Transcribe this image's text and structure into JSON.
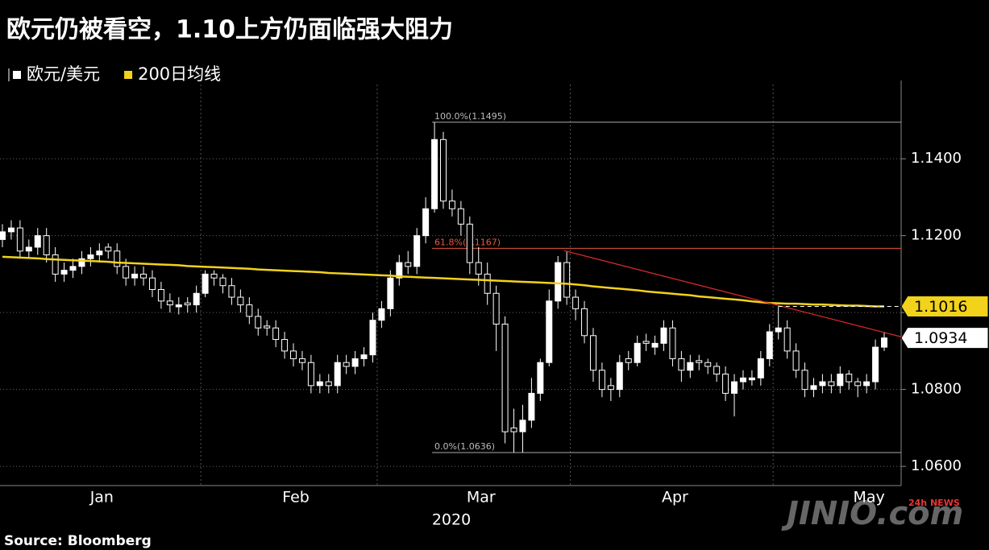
{
  "chart_data": {
    "type": "candlestick",
    "title": "欧元仍被看空，1.10上方仍面临强大阻力",
    "source": "Source: Bloomberg",
    "watermark": "JINIO.com",
    "watermark_badge": "24h NEWS",
    "x_year": "2020",
    "categories": [
      null,
      null,
      null,
      null,
      null,
      null,
      null,
      null,
      null,
      null,
      null,
      "Jan",
      null,
      null,
      null,
      null,
      null,
      null,
      null,
      null,
      null,
      null,
      null,
      null,
      null,
      null,
      null,
      null,
      null,
      null,
      null,
      null,
      null,
      "Feb",
      null,
      null,
      null,
      null,
      null,
      null,
      null,
      null,
      null,
      null,
      null,
      null,
      null,
      null,
      null,
      null,
      null,
      null,
      null,
      null,
      "Mar",
      null,
      null,
      null,
      null,
      null,
      null,
      null,
      null,
      null,
      null,
      null,
      null,
      null,
      null,
      null,
      null,
      null,
      null,
      null,
      null,
      null,
      "Apr",
      null,
      null,
      null,
      null,
      null,
      null,
      null,
      null,
      null,
      null,
      null,
      null,
      null,
      null,
      null,
      null,
      null,
      null,
      null,
      null,
      null,
      "May",
      null,
      null
    ],
    "series": [
      {
        "name": "欧元/美元",
        "color": "#ffffff",
        "open": [
          1.119,
          1.121,
          1.122,
          1.116,
          1.117,
          1.12,
          1.115,
          1.11,
          1.111,
          1.112,
          1.114,
          1.115,
          1.117,
          1.116,
          1.112,
          1.109,
          1.11,
          1.109,
          1.106,
          1.103,
          1.1015,
          1.1025,
          1.102,
          1.105,
          1.11,
          1.109,
          1.107,
          1.104,
          1.102,
          1.099,
          1.0965,
          1.096,
          1.093,
          1.09,
          1.088,
          1.087,
          1.081,
          1.082,
          1.081,
          1.087,
          1.086,
          1.088,
          1.089,
          1.098,
          1.101,
          1.109,
          1.113,
          1.112,
          1.12,
          1.127,
          1.145,
          1.129,
          1.127,
          1.123,
          1.113,
          1.11,
          1.105,
          1.097,
          1.07,
          1.069,
          1.072,
          1.079,
          1.087,
          1.103,
          1.113,
          1.104,
          1.101,
          1.094,
          1.085,
          1.081,
          1.08,
          1.088,
          1.087,
          1.0925,
          1.091,
          1.092,
          1.096,
          1.088,
          1.085,
          1.0875,
          1.087,
          1.086,
          1.084,
          1.079,
          1.082,
          1.0825,
          1.083,
          1.088,
          1.095,
          1.096,
          1.09,
          1.085,
          1.08,
          1.081,
          1.082,
          1.081,
          1.084,
          1.082,
          1.081,
          1.082,
          1.091
        ],
        "high": [
          1.123,
          1.124,
          1.124,
          1.119,
          1.122,
          1.122,
          1.117,
          1.113,
          1.114,
          1.116,
          1.117,
          1.118,
          1.118,
          1.118,
          1.114,
          1.112,
          1.112,
          1.111,
          1.108,
          1.105,
          1.104,
          1.104,
          1.107,
          1.111,
          1.111,
          1.11,
          1.109,
          1.106,
          1.104,
          1.101,
          1.098,
          1.098,
          1.095,
          1.092,
          1.09,
          1.089,
          1.084,
          1.084,
          1.089,
          1.089,
          1.09,
          1.091,
          1.1,
          1.103,
          1.111,
          1.115,
          1.116,
          1.122,
          1.13,
          1.1495,
          1.147,
          1.132,
          1.129,
          1.125,
          1.117,
          1.113,
          1.107,
          1.099,
          1.075,
          1.076,
          1.083,
          1.088,
          1.106,
          1.1147,
          1.116,
          1.106,
          1.103,
          1.096,
          1.087,
          1.083,
          1.089,
          1.09,
          1.094,
          1.0945,
          1.094,
          1.098,
          1.098,
          1.09,
          1.089,
          1.089,
          1.088,
          1.087,
          1.086,
          1.084,
          1.085,
          1.085,
          1.09,
          1.097,
          1.1016,
          1.098,
          1.092,
          1.087,
          1.083,
          1.084,
          1.084,
          1.086,
          1.085,
          1.083,
          1.084,
          1.093,
          1.095
        ],
        "low": [
          1.117,
          1.119,
          1.114,
          1.114,
          1.115,
          1.113,
          1.108,
          1.108,
          1.109,
          1.11,
          1.112,
          1.113,
          1.114,
          1.11,
          1.107,
          1.107,
          1.107,
          1.104,
          1.101,
          1.1,
          1.0995,
          1.1,
          1.1,
          1.104,
          1.107,
          1.105,
          1.102,
          1.1,
          1.097,
          1.094,
          1.094,
          1.091,
          1.088,
          1.086,
          1.085,
          1.079,
          1.079,
          1.079,
          1.079,
          1.084,
          1.084,
          1.086,
          1.087,
          1.096,
          1.099,
          1.107,
          1.11,
          1.11,
          1.118,
          1.126,
          1.127,
          1.125,
          1.12,
          1.11,
          1.107,
          1.102,
          1.09,
          1.066,
          1.0636,
          1.0636,
          1.07,
          1.077,
          1.086,
          1.101,
          1.102,
          1.098,
          1.092,
          1.082,
          1.078,
          1.077,
          1.078,
          1.085,
          1.086,
          1.09,
          1.089,
          1.09,
          1.086,
          1.082,
          1.083,
          1.085,
          1.084,
          1.082,
          1.077,
          1.073,
          1.08,
          1.081,
          1.081,
          1.086,
          1.093,
          1.088,
          1.083,
          1.078,
          1.078,
          1.079,
          1.079,
          1.079,
          1.08,
          1.078,
          1.079,
          1.08,
          1.09
        ],
        "close": [
          1.121,
          1.122,
          1.116,
          1.117,
          1.12,
          1.115,
          1.11,
          1.111,
          1.112,
          1.114,
          1.115,
          1.116,
          1.116,
          1.112,
          1.109,
          1.11,
          1.109,
          1.106,
          1.103,
          1.102,
          1.102,
          1.102,
          1.105,
          1.11,
          1.109,
          1.107,
          1.104,
          1.102,
          1.099,
          1.096,
          1.096,
          1.093,
          1.09,
          1.088,
          1.087,
          1.081,
          1.082,
          1.081,
          1.087,
          1.086,
          1.088,
          1.089,
          1.098,
          1.101,
          1.109,
          1.113,
          1.112,
          1.12,
          1.127,
          1.145,
          1.129,
          1.127,
          1.123,
          1.113,
          1.11,
          1.105,
          1.097,
          1.069,
          1.069,
          1.072,
          1.079,
          1.087,
          1.103,
          1.113,
          1.104,
          1.101,
          1.094,
          1.085,
          1.08,
          1.08,
          1.087,
          1.087,
          1.092,
          1.092,
          1.092,
          1.096,
          1.088,
          1.085,
          1.087,
          1.087,
          1.086,
          1.084,
          1.079,
          1.082,
          1.083,
          1.083,
          1.088,
          1.095,
          1.096,
          1.09,
          1.085,
          1.08,
          1.081,
          1.082,
          1.081,
          1.084,
          1.082,
          1.081,
          1.082,
          1.091,
          1.0934
        ]
      },
      {
        "name": "200日均线",
        "color": "#f2d21b",
        "type": "line",
        "values": [
          1.1145,
          1.1144,
          1.1143,
          1.1142,
          1.1141,
          1.1139,
          1.1138,
          1.1137,
          1.1136,
          1.1135,
          1.1134,
          1.1133,
          1.1132,
          1.113,
          1.1129,
          1.1128,
          1.1127,
          1.1126,
          1.1125,
          1.1124,
          1.1123,
          1.1121,
          1.112,
          1.1119,
          1.1118,
          1.1117,
          1.1116,
          1.1115,
          1.1114,
          1.1112,
          1.1111,
          1.111,
          1.1109,
          1.1108,
          1.1107,
          1.1106,
          1.1105,
          1.1103,
          1.1102,
          1.1101,
          1.11,
          1.1099,
          1.1098,
          1.1097,
          1.1096,
          1.1094,
          1.1093,
          1.1092,
          1.1091,
          1.109,
          1.1089,
          1.1088,
          1.1087,
          1.1086,
          1.1085,
          1.1084,
          1.1083,
          1.1082,
          1.1081,
          1.108,
          1.1079,
          1.1078,
          1.1077,
          1.1076,
          1.1075,
          1.1073,
          1.1071,
          1.1068,
          1.1066,
          1.1064,
          1.1062,
          1.106,
          1.1058,
          1.1055,
          1.1053,
          1.1051,
          1.1049,
          1.1047,
          1.1045,
          1.1042,
          1.104,
          1.1038,
          1.1036,
          1.1034,
          1.1032,
          1.1029,
          1.1027,
          1.1025,
          1.1024,
          1.1023,
          1.1023,
          1.1022,
          1.1021,
          1.1021,
          1.102,
          1.1019,
          1.1018,
          1.1018,
          1.1017,
          1.1016,
          1.1016
        ]
      }
    ],
    "ylim": [
      1.055,
      1.1593
    ],
    "yticks": [
      {
        "value": 1.06,
        "label": "1.0600"
      },
      {
        "value": 1.08,
        "label": "1.0800"
      },
      {
        "value": 1.1,
        "label": "1.1000"
      },
      {
        "value": 1.12,
        "label": "1.1200"
      },
      {
        "value": 1.14,
        "label": "1.1400"
      }
    ],
    "grid": true,
    "fib_levels": [
      {
        "value": 1.1495,
        "label": "100.0%(1.1495)",
        "color": "#aaaaaa"
      },
      {
        "value": 1.1167,
        "label": "61.8%(1.1167)",
        "color": "#e8573a"
      },
      {
        "value": 1.0636,
        "label": "0.0%(1.0636)",
        "color": "#aaaaaa"
      }
    ],
    "trendline": {
      "values": [
        1.1161,
        1.0937
      ],
      "color": "#d62828"
    },
    "ma_tag": 1.1016,
    "last_tag": 1.0934
  }
}
